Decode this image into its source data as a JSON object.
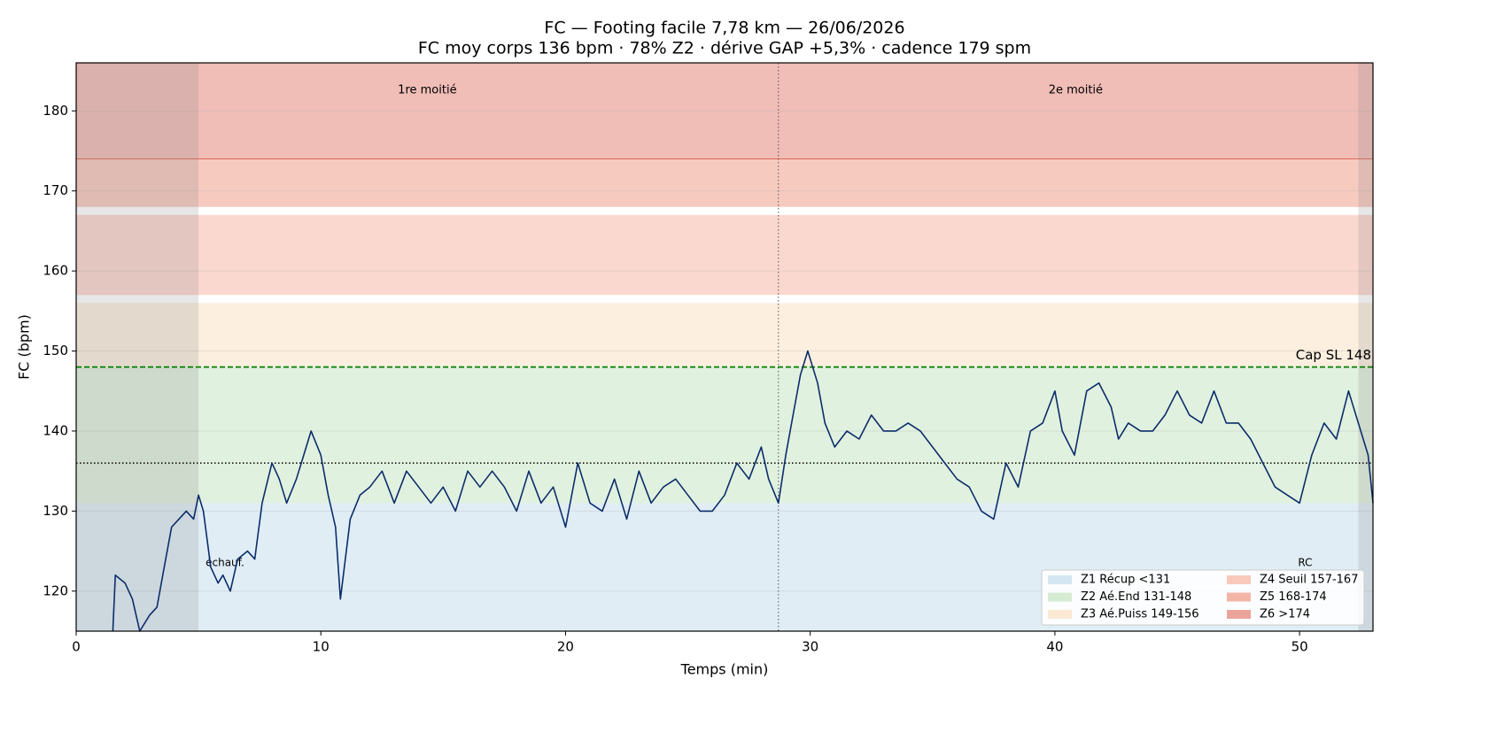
{
  "chart_data": {
    "type": "line",
    "title": "FC — Footing facile 7,78 km — 26/06/2026",
    "subtitle": "FC moy corps 136 bpm · 78% Z2 · dérive GAP +5,3% · cadence 179 spm",
    "x_label": "Temps (min)",
    "y_label": "FC (bpm)",
    "xlim": [
      0,
      53
    ],
    "ylim": [
      115,
      186
    ],
    "xticks": [
      0,
      10,
      20,
      30,
      40,
      50
    ],
    "yticks": [
      120,
      130,
      140,
      150,
      160,
      170,
      180
    ],
    "grid": true,
    "zones": [
      {
        "name": "Z1 Récup <131",
        "color": "#d4e6f1",
        "lo": null,
        "hi": 131
      },
      {
        "name": "Z2 Aé.End 131-148",
        "color": "#d5ecd3",
        "lo": 131,
        "hi": 148
      },
      {
        "name": "Z3 Aé.Puiss 149-156",
        "color": "#fbe9d3",
        "lo": 148,
        "hi": 156
      },
      {
        "name": "Z4 Seuil 157-167",
        "color": "#f9c9bc",
        "lo": 157,
        "hi": 167
      },
      {
        "name": "Z5 168-174",
        "color": "#f4b5a8",
        "lo": 168,
        "hi": 174
      },
      {
        "name": "Z6 >174",
        "color": "#eaa39b",
        "lo": 174,
        "hi": null
      }
    ],
    "regions": [
      {
        "label": "échauf.",
        "x": [
          0,
          5
        ]
      },
      {
        "label": "RC",
        "x": [
          52.4,
          53
        ]
      }
    ],
    "split": {
      "x": 28.7,
      "labels": [
        "1re moitié",
        "2e moitié"
      ]
    },
    "ref_lines": [
      {
        "y": 148,
        "label": "Cap SL 148",
        "color": "#008000",
        "style": "dashed"
      },
      {
        "y": 136,
        "color": "#000000",
        "style": "dotted"
      }
    ],
    "legend": "lower right",
    "series": [
      {
        "color": "#0b2d6b",
        "x": [
          1.5,
          1.6,
          2.0,
          2.3,
          2.6,
          3.0,
          3.3,
          3.6,
          3.9,
          4.2,
          4.5,
          4.8,
          5.0,
          5.2,
          5.5,
          5.8,
          6.0,
          6.3,
          6.6,
          7.0,
          7.3,
          7.6,
          8.0,
          8.3,
          8.6,
          9.0,
          9.3,
          9.6,
          10.0,
          10.3,
          10.6,
          10.8,
          11.2,
          11.6,
          12.0,
          12.5,
          13.0,
          13.5,
          14.0,
          14.5,
          15.0,
          15.5,
          16.0,
          16.5,
          17.0,
          17.5,
          18.0,
          18.5,
          19.0,
          19.5,
          20.0,
          20.5,
          21.0,
          21.5,
          22.0,
          22.5,
          23.0,
          23.5,
          24.0,
          24.5,
          25.0,
          25.5,
          26.0,
          26.5,
          27.0,
          27.5,
          28.0,
          28.3,
          28.7,
          29.0,
          29.3,
          29.6,
          29.9,
          30.3,
          30.6,
          31.0,
          31.5,
          32.0,
          32.5,
          33.0,
          33.5,
          34.0,
          34.5,
          35.0,
          35.5,
          36.0,
          36.5,
          37.0,
          37.5,
          38.0,
          38.5,
          39.0,
          39.5,
          40.0,
          40.3,
          40.8,
          41.3,
          41.8,
          42.3,
          42.6,
          43.0,
          43.5,
          44.0,
          44.5,
          45.0,
          45.5,
          46.0,
          46.5,
          47.0,
          47.5,
          48.0,
          48.5,
          49.0,
          49.5,
          50.0,
          50.5,
          51.0,
          51.5,
          52.0,
          52.5,
          52.8,
          53.0
        ],
        "values": [
          115,
          122,
          121,
          119,
          115,
          117,
          118,
          123,
          128,
          129,
          130,
          129,
          132,
          130,
          123,
          121,
          122,
          120,
          124,
          125,
          124,
          131,
          136,
          134,
          131,
          134,
          137,
          140,
          137,
          132,
          128,
          119,
          129,
          132,
          133,
          135,
          131,
          135,
          133,
          131,
          133,
          130,
          135,
          133,
          135,
          133,
          130,
          135,
          131,
          133,
          128,
          136,
          131,
          130,
          134,
          129,
          135,
          131,
          133,
          134,
          132,
          130,
          130,
          132,
          136,
          134,
          138,
          134,
          131,
          137,
          142,
          147,
          150,
          146,
          141,
          138,
          140,
          139,
          142,
          140,
          140,
          141,
          140,
          138,
          136,
          134,
          133,
          130,
          129,
          136,
          133,
          140,
          141,
          145,
          140,
          137,
          145,
          146,
          143,
          139,
          141,
          140,
          140,
          142,
          145,
          142,
          141,
          145,
          141,
          141,
          139,
          136,
          133,
          132,
          131,
          137,
          141,
          139,
          145,
          140,
          137,
          131
        ]
      }
    ]
  }
}
